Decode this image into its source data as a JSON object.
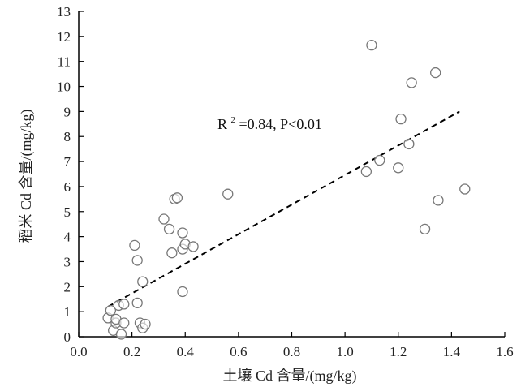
{
  "chart_data": {
    "type": "scatter",
    "title": "",
    "xlabel": "土壤 Cd 含量/(mg/kg)",
    "ylabel": "稻米 Cd 含量/(mg/kg)",
    "xlim": [
      0.0,
      1.6
    ],
    "ylim": [
      0,
      13
    ],
    "x_ticks": [
      "0.0",
      "0.2",
      "0.4",
      "0.6",
      "0.8",
      "1.0",
      "1.2",
      "1.4",
      "1.6"
    ],
    "y_ticks": [
      "0",
      "1",
      "2",
      "3",
      "4",
      "5",
      "6",
      "7",
      "8",
      "9",
      "10",
      "11",
      "12",
      "13"
    ],
    "grid": false,
    "legend": "none",
    "annotation": {
      "prefix": "R",
      "sup": "2",
      "suffix": "=0.84, P<0.01"
    },
    "trendline": {
      "style": "dashed",
      "color": "#000000",
      "x": [
        0.11,
        1.43
      ],
      "y": [
        1.2,
        9.0
      ]
    },
    "marker": {
      "shape": "open-circle",
      "stroke": "#777777",
      "fill": "#ffffff"
    },
    "points": [
      {
        "x": 0.11,
        "y": 0.75
      },
      {
        "x": 0.12,
        "y": 1.05
      },
      {
        "x": 0.13,
        "y": 0.25
      },
      {
        "x": 0.14,
        "y": 0.55
      },
      {
        "x": 0.14,
        "y": 0.7
      },
      {
        "x": 0.15,
        "y": 1.25
      },
      {
        "x": 0.16,
        "y": 0.1
      },
      {
        "x": 0.17,
        "y": 0.55
      },
      {
        "x": 0.17,
        "y": 1.3
      },
      {
        "x": 0.21,
        "y": 3.65
      },
      {
        "x": 0.22,
        "y": 1.35
      },
      {
        "x": 0.22,
        "y": 3.05
      },
      {
        "x": 0.23,
        "y": 0.55
      },
      {
        "x": 0.24,
        "y": 0.35
      },
      {
        "x": 0.24,
        "y": 2.2
      },
      {
        "x": 0.25,
        "y": 0.5
      },
      {
        "x": 0.32,
        "y": 4.7
      },
      {
        "x": 0.34,
        "y": 4.3
      },
      {
        "x": 0.35,
        "y": 3.35
      },
      {
        "x": 0.36,
        "y": 5.5
      },
      {
        "x": 0.37,
        "y": 5.55
      },
      {
        "x": 0.39,
        "y": 4.15
      },
      {
        "x": 0.39,
        "y": 3.5
      },
      {
        "x": 0.39,
        "y": 1.8
      },
      {
        "x": 0.4,
        "y": 3.7
      },
      {
        "x": 0.43,
        "y": 3.6
      },
      {
        "x": 0.56,
        "y": 5.7
      },
      {
        "x": 1.08,
        "y": 6.6
      },
      {
        "x": 1.1,
        "y": 11.65
      },
      {
        "x": 1.13,
        "y": 7.05
      },
      {
        "x": 1.2,
        "y": 6.75
      },
      {
        "x": 1.21,
        "y": 8.7
      },
      {
        "x": 1.24,
        "y": 7.7
      },
      {
        "x": 1.25,
        "y": 10.15
      },
      {
        "x": 1.3,
        "y": 4.3
      },
      {
        "x": 1.34,
        "y": 10.55
      },
      {
        "x": 1.35,
        "y": 5.45
      },
      {
        "x": 1.45,
        "y": 5.9
      }
    ]
  }
}
